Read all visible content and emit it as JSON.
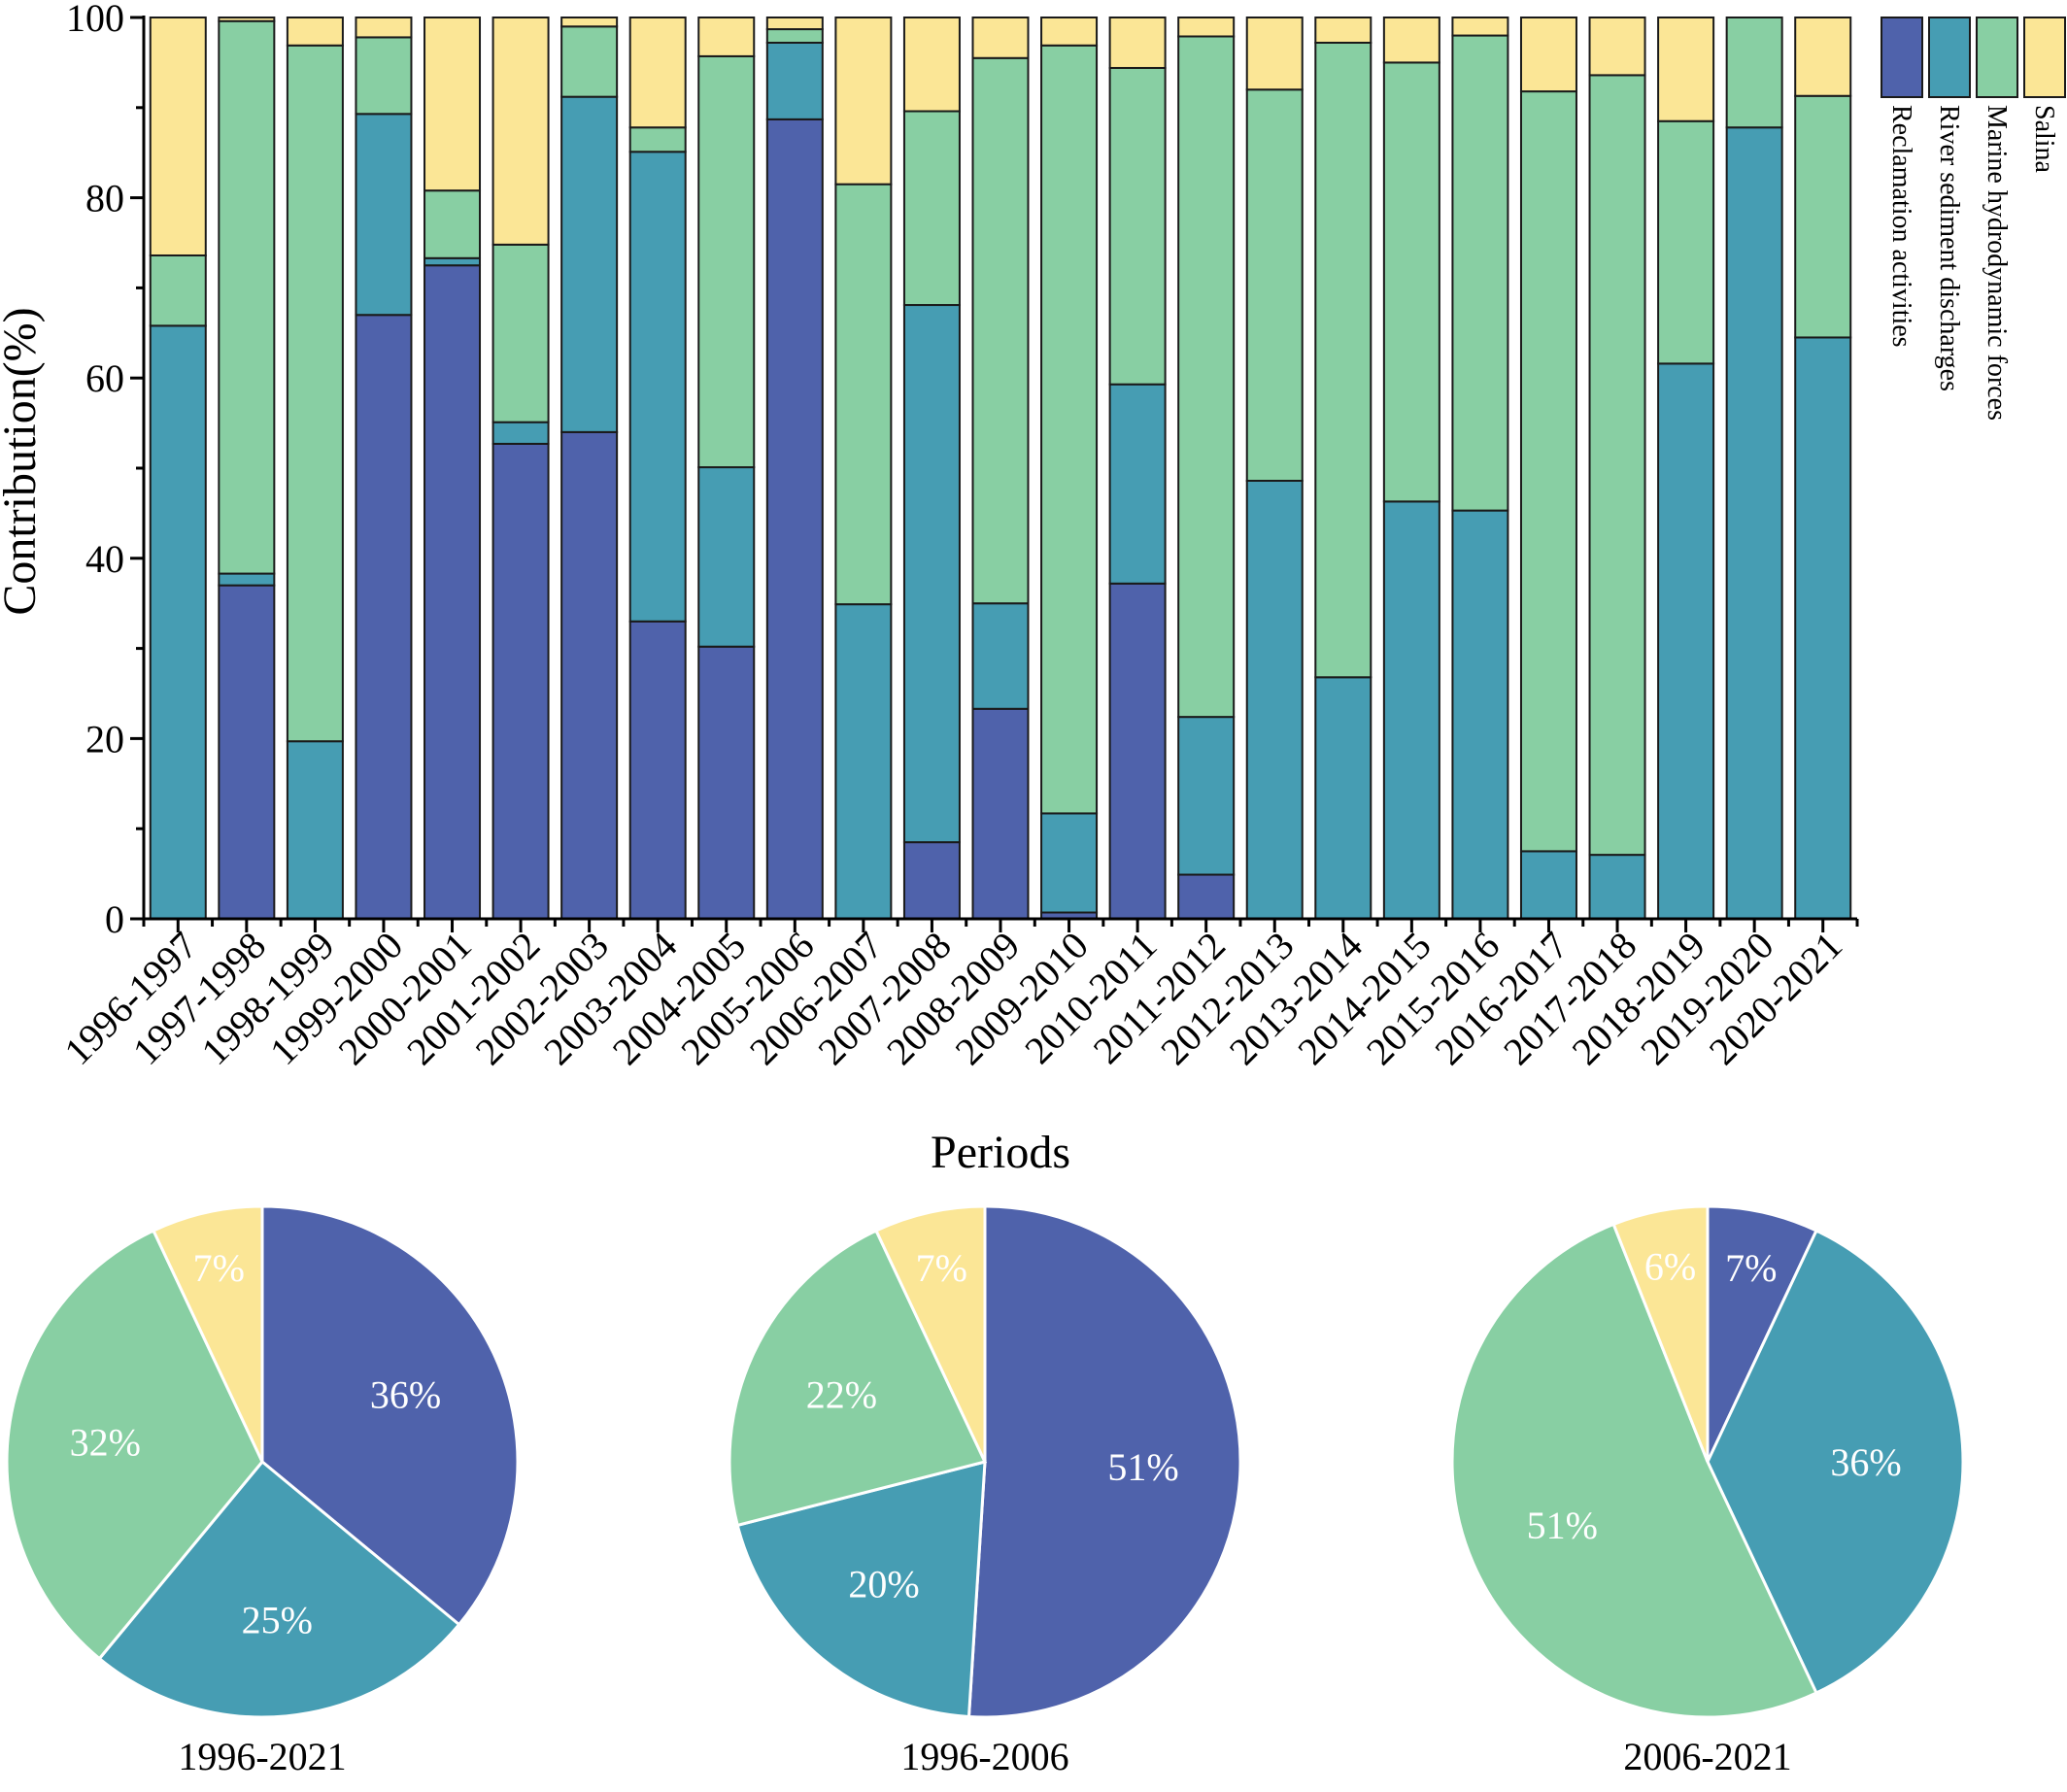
{
  "colors": {
    "reclamation": "#4f62ab",
    "river": "#469db3",
    "marine": "#88cfa3",
    "salina": "#fbe696"
  },
  "chart_data": [
    {
      "type": "bar",
      "stacked": true,
      "title": "",
      "xlabel": "Periods",
      "ylabel": "Contribution(%)",
      "ylim": [
        0,
        100
      ],
      "yticks": [
        "0",
        "20",
        "40",
        "60",
        "80",
        "100"
      ],
      "legend_position": "right",
      "categories": [
        "1996-1997",
        "1997-1998",
        "1998-1999",
        "1999-2000",
        "2000-2001",
        "2001-2002",
        "2002-2003",
        "2003-2004",
        "2004-2005",
        "2005-2006",
        "2006-2007",
        "2007-2008",
        "2008-2009",
        "2009-2010",
        "2010-2011",
        "2011-2012",
        "2012-2013",
        "2013-2014",
        "2014-2015",
        "2015-2016",
        "2016-2017",
        "2017-2018",
        "2018-2019",
        "2019-2020",
        "2020-2021"
      ],
      "series": [
        {
          "name": "Reclamation activities",
          "color_key": "reclamation",
          "values": [
            0,
            37,
            0,
            67,
            72.5,
            52.7,
            54,
            33,
            30.2,
            88.7,
            0,
            8.5,
            23.3,
            0.7,
            37.2,
            4.9,
            0,
            0,
            0,
            0,
            0,
            0,
            0,
            0,
            0
          ]
        },
        {
          "name": "River sediment discharges",
          "color_key": "river",
          "values": [
            65.8,
            1.3,
            19.7,
            22.3,
            0.8,
            2.4,
            37.2,
            52.1,
            19.9,
            8.5,
            34.9,
            59.6,
            11.7,
            11,
            22.1,
            17.5,
            48.6,
            26.8,
            46.3,
            45.3,
            7.5,
            7.1,
            61.6,
            87.8,
            64.5
          ]
        },
        {
          "name": "Marine hydrodynamic forces",
          "color_key": "marine",
          "values": [
            7.8,
            61.3,
            77.2,
            8.5,
            7.5,
            19.7,
            7.8,
            2.7,
            45.6,
            1.5,
            46.6,
            21.5,
            60.5,
            85.2,
            35.1,
            75.5,
            43.4,
            70.4,
            48.7,
            52.7,
            84.3,
            86.5,
            26.9,
            12.2,
            26.8
          ]
        },
        {
          "name": "Salina",
          "color_key": "salina",
          "values": [
            26.4,
            0.4,
            3.1,
            2.2,
            19.2,
            25.2,
            1,
            12.2,
            4.3,
            1.3,
            18.5,
            10.4,
            4.5,
            3.1,
            5.6,
            2.1,
            8,
            2.8,
            5,
            2,
            8.2,
            6.4,
            11.5,
            0,
            8.7
          ]
        }
      ]
    },
    {
      "type": "pie",
      "label": "1996-2021",
      "slices": [
        {
          "name": "Reclamation activities",
          "value": 36,
          "label": "36%",
          "color_key": "reclamation"
        },
        {
          "name": "River sediment discharges",
          "value": 25,
          "label": "25%",
          "color_key": "river"
        },
        {
          "name": "Marine hydrodynamic forces",
          "value": 32,
          "label": "32%",
          "color_key": "marine"
        },
        {
          "name": "Salina",
          "value": 7,
          "label": "7%",
          "color_key": "salina"
        }
      ]
    },
    {
      "type": "pie",
      "label": "1996-2006",
      "slices": [
        {
          "name": "Reclamation activities",
          "value": 51,
          "label": "51%",
          "color_key": "reclamation"
        },
        {
          "name": "River sediment discharges",
          "value": 20,
          "label": "20%",
          "color_key": "river"
        },
        {
          "name": "Marine hydrodynamic forces",
          "value": 22,
          "label": "22%",
          "color_key": "marine"
        },
        {
          "name": "Salina",
          "value": 7,
          "label": "7%",
          "color_key": "salina"
        }
      ]
    },
    {
      "type": "pie",
      "label": "2006-2021",
      "slices": [
        {
          "name": "Reclamation activities",
          "value": 7,
          "label": "7%",
          "color_key": "reclamation"
        },
        {
          "name": "River sediment discharges",
          "value": 36,
          "label": "36%",
          "color_key": "river"
        },
        {
          "name": "Marine hydrodynamic forces",
          "value": 51,
          "label": "51%",
          "color_key": "marine"
        },
        {
          "name": "Salina",
          "value": 6,
          "label": "6%",
          "color_key": "salina"
        }
      ]
    }
  ]
}
